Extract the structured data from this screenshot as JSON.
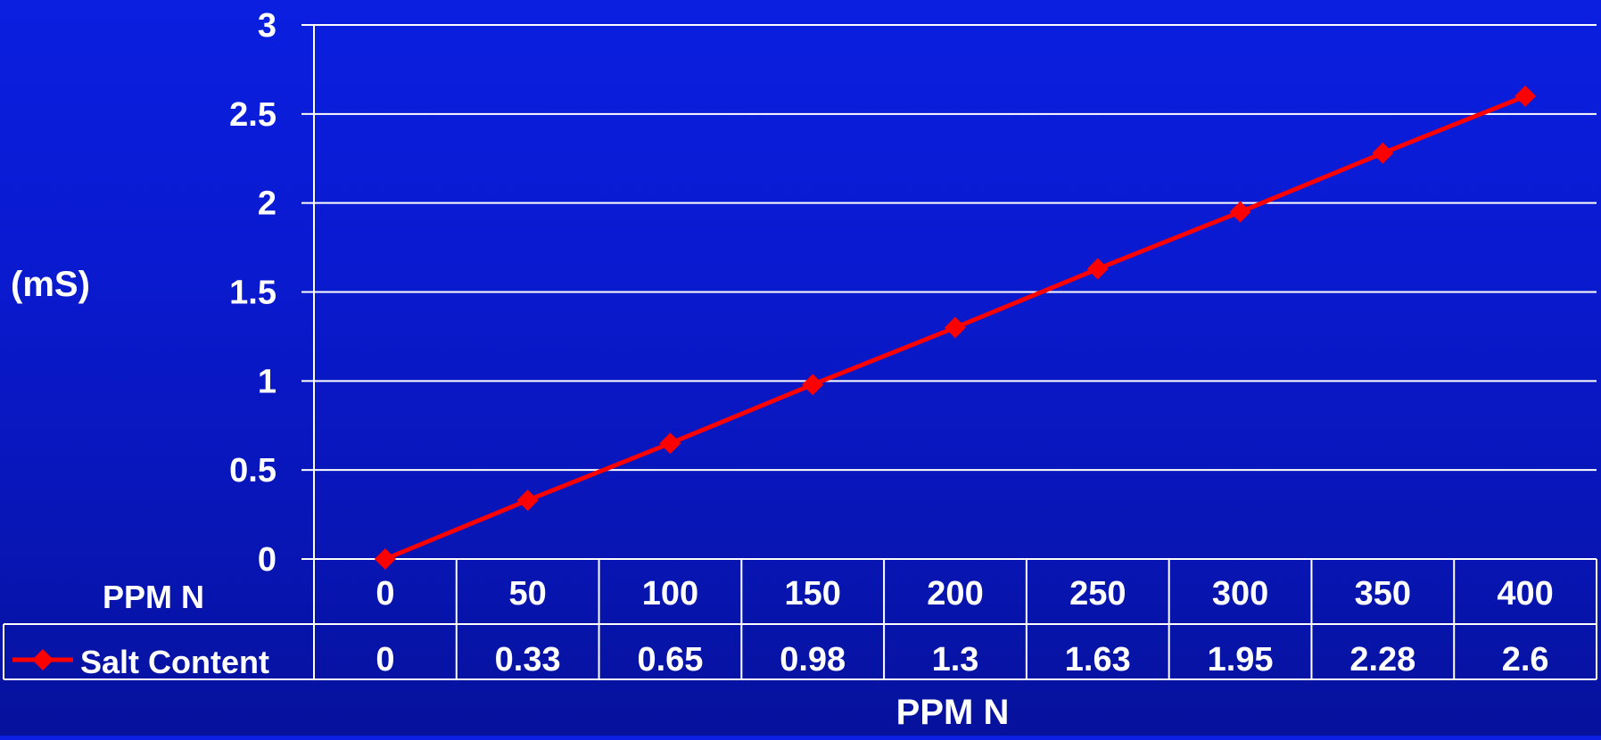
{
  "chart_data": {
    "type": "line",
    "title": "",
    "xlabel": "PPM N",
    "ylabel": "(mS)",
    "ylim": [
      0,
      3
    ],
    "yticks": [
      "0",
      "0.5",
      "1",
      "1.5",
      "2",
      "2.5",
      "3"
    ],
    "grid": true,
    "categories": [
      "0",
      "50",
      "100",
      "150",
      "200",
      "250",
      "300",
      "350",
      "400"
    ],
    "series": [
      {
        "name": "Salt Content",
        "color": "#ff0000",
        "marker": "diamond",
        "values": [
          0,
          0.33,
          0.65,
          0.98,
          1.3,
          1.63,
          1.95,
          2.28,
          2.6
        ],
        "value_labels": [
          "0",
          "0.33",
          "0.65",
          "0.98",
          "1.3",
          "1.63",
          "1.95",
          "2.28",
          "2.6"
        ]
      }
    ],
    "data_table": {
      "header_label": "PPM N",
      "row_label": "Salt Content"
    }
  }
}
